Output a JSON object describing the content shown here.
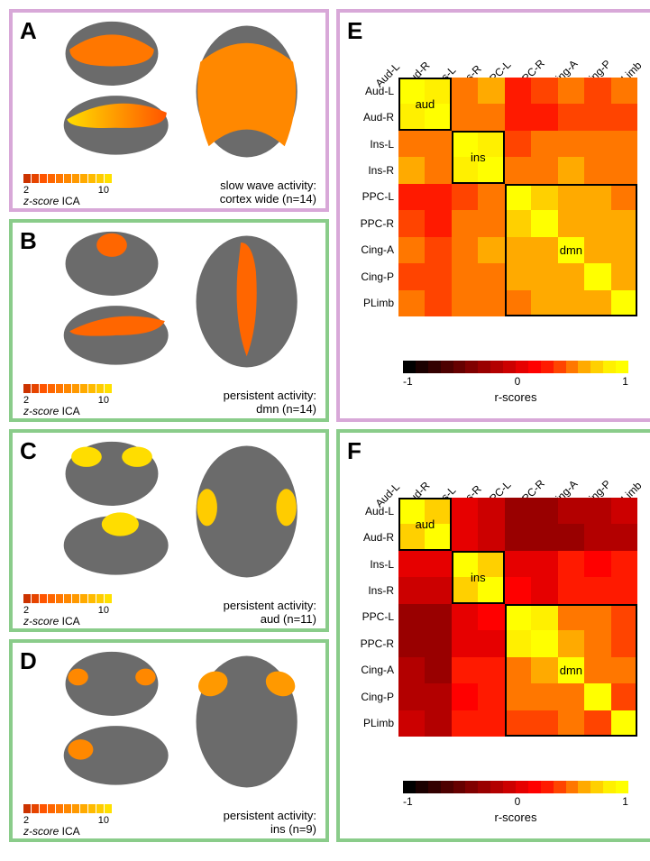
{
  "panels": {
    "A": {
      "label": "A",
      "border": "#d8a8d8",
      "caption_line1": "slow wave activity:",
      "caption_line2": "cortex wide  (n=14)",
      "region": "cortex"
    },
    "B": {
      "label": "B",
      "border": "#8acc8a",
      "caption_line1": "persistent activity:",
      "caption_line2": "dmn  (n=14)",
      "region": "dmn"
    },
    "C": {
      "label": "C",
      "border": "#8acc8a",
      "caption_line1": "persistent activity:",
      "caption_line2": "aud  (n=11)",
      "region": "aud"
    },
    "D": {
      "label": "D",
      "border": "#8acc8a",
      "caption_line1": "persistent activity:",
      "caption_line2": "ins  (n=9)",
      "region": "ins"
    },
    "E": {
      "label": "E",
      "border": "#d8a8d8"
    },
    "F": {
      "label": "F",
      "border": "#8acc8a"
    }
  },
  "zscore_label": "z-score ICA",
  "zscore_prefix": "z-score",
  "zscore_suffix": " ICA",
  "colorbar_ica": {
    "min": "2",
    "max": "10",
    "colors": [
      "#cc3300",
      "#e64400",
      "#ff5500",
      "#ff6600",
      "#ff7700",
      "#ff8800",
      "#ff9900",
      "#ffaa00",
      "#ffbb00",
      "#ffcc00",
      "#ffe000"
    ]
  },
  "heatmap_labels": [
    "Aud-L",
    "Aud-R",
    "Ins-L",
    "Ins-R",
    "PPC-L",
    "PPC-R",
    "Cing-A",
    "Cing-P",
    "PLimb"
  ],
  "heatmap_groups": [
    {
      "label": "aud",
      "start": 0,
      "end": 2
    },
    {
      "label": "ins",
      "start": 2,
      "end": 4
    },
    {
      "label": "dmn",
      "start": 4,
      "end": 9
    }
  ],
  "heatmap_colorbar": {
    "min": "-1",
    "mid": "0",
    "max": "1",
    "title": "r-scores",
    "colors": [
      "#000000",
      "#1a0000",
      "#330000",
      "#4d0000",
      "#660000",
      "#800000",
      "#990000",
      "#b30000",
      "#cc0000",
      "#e60000",
      "#ff0000",
      "#ff1a00",
      "#ff4400",
      "#ff7700",
      "#ffaa00",
      "#ffd000",
      "#fff000",
      "#ffff00"
    ]
  },
  "heatmap_E": [
    [
      1.0,
      0.85,
      0.55,
      0.6,
      0.35,
      0.4,
      0.5,
      0.45,
      0.5
    ],
    [
      0.85,
      1.0,
      0.5,
      0.55,
      0.3,
      0.35,
      0.45,
      0.4,
      0.45
    ],
    [
      0.55,
      0.5,
      1.0,
      0.85,
      0.45,
      0.5,
      0.55,
      0.5,
      0.55
    ],
    [
      0.6,
      0.55,
      0.85,
      1.0,
      0.5,
      0.55,
      0.6,
      0.55,
      0.55
    ],
    [
      0.35,
      0.3,
      0.45,
      0.5,
      1.0,
      0.75,
      0.65,
      0.6,
      0.55
    ],
    [
      0.4,
      0.35,
      0.5,
      0.55,
      0.75,
      1.0,
      0.7,
      0.65,
      0.6
    ],
    [
      0.5,
      0.45,
      0.55,
      0.6,
      0.65,
      0.7,
      1.0,
      0.7,
      0.65
    ],
    [
      0.45,
      0.4,
      0.5,
      0.55,
      0.6,
      0.65,
      0.7,
      1.0,
      0.6
    ],
    [
      0.5,
      0.45,
      0.55,
      0.55,
      0.55,
      0.6,
      0.65,
      0.6,
      1.0
    ]
  ],
  "heatmap_F": [
    [
      1.0,
      0.8,
      0.1,
      -0.05,
      -0.25,
      -0.3,
      -0.2,
      -0.15,
      -0.1
    ],
    [
      0.8,
      1.0,
      0.05,
      -0.1,
      -0.3,
      -0.35,
      -0.25,
      -0.2,
      -0.15
    ],
    [
      0.1,
      0.05,
      1.0,
      0.8,
      0.1,
      0.05,
      0.3,
      0.2,
      0.3
    ],
    [
      -0.05,
      -0.1,
      0.8,
      1.0,
      0.15,
      0.1,
      0.35,
      0.25,
      0.35
    ],
    [
      -0.25,
      -0.3,
      0.1,
      0.15,
      1.0,
      0.85,
      0.55,
      0.5,
      0.4
    ],
    [
      -0.3,
      -0.35,
      0.05,
      0.1,
      0.85,
      1.0,
      0.6,
      0.55,
      0.45
    ],
    [
      -0.2,
      -0.25,
      0.3,
      0.35,
      0.55,
      0.6,
      1.0,
      0.55,
      0.5
    ],
    [
      -0.15,
      -0.2,
      0.2,
      0.25,
      0.5,
      0.55,
      0.55,
      1.0,
      0.45
    ],
    [
      -0.1,
      -0.15,
      0.3,
      0.35,
      0.4,
      0.45,
      0.5,
      0.45,
      1.0
    ]
  ]
}
